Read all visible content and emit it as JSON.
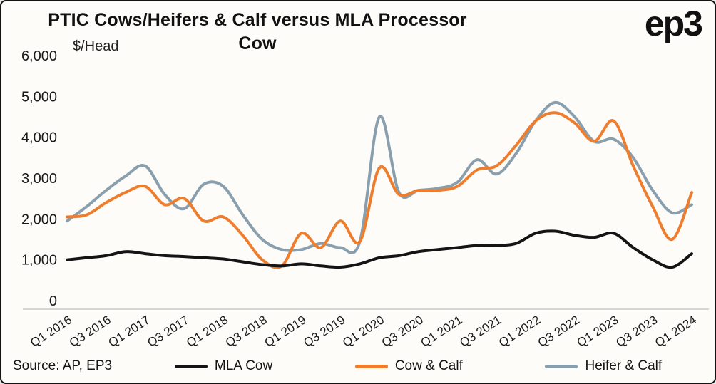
{
  "header": {
    "title_line1": "PTIC Cows/Heifers & Calf versus MLA Processor",
    "title_line2": "Cow",
    "logo_text": "ep3"
  },
  "footer": {
    "source": "Source: AP, EP3"
  },
  "chart_data": {
    "type": "line",
    "title": "PTIC Cows/Heifers & Calf versus MLA Processor Cow",
    "xlabel": "",
    "ylabel": "$/Head",
    "ylim": [
      0,
      6000
    ],
    "ytick_step": 1000,
    "x_label_every": 2,
    "grid": false,
    "legend_position": "bottom",
    "categories": [
      "Q1 2016",
      "Q2 2016",
      "Q3 2016",
      "Q4 2016",
      "Q1 2017",
      "Q2 2017",
      "Q3 2017",
      "Q4 2017",
      "Q1 2018",
      "Q2 2018",
      "Q3 2018",
      "Q4 2018",
      "Q1 2019",
      "Q2 2019",
      "Q3 2019",
      "Q4 2019",
      "Q1 2020",
      "Q2 2020",
      "Q3 2020",
      "Q4 2020",
      "Q1 2021",
      "Q2 2021",
      "Q3 2021",
      "Q4 2021",
      "Q1 2022",
      "Q2 2022",
      "Q3 2022",
      "Q4 2022",
      "Q1 2023",
      "Q2 2023",
      "Q3 2023",
      "Q4 2023",
      "Q1 2024"
    ],
    "series": [
      {
        "name": "MLA Cow",
        "color": "#141414",
        "values": [
          1000,
          1050,
          1100,
          1200,
          1150,
          1100,
          1080,
          1050,
          1020,
          950,
          880,
          850,
          900,
          850,
          820,
          900,
          1050,
          1100,
          1200,
          1250,
          1300,
          1350,
          1350,
          1400,
          1650,
          1700,
          1600,
          1550,
          1650,
          1300,
          1000,
          820,
          1150
        ]
      },
      {
        "name": "Cow & Calf",
        "color": "#EF7D2E",
        "values": [
          2050,
          2100,
          2400,
          2650,
          2800,
          2350,
          2500,
          1950,
          2050,
          1600,
          1000,
          850,
          1650,
          1300,
          1950,
          1450,
          3250,
          2600,
          2700,
          2700,
          2800,
          3200,
          3300,
          3800,
          4400,
          4600,
          4350,
          3900,
          4400,
          3300,
          2300,
          1500,
          2650
        ]
      },
      {
        "name": "Heifer & Calf",
        "color": "#8A9FAD",
        "values": [
          1950,
          2300,
          2700,
          3050,
          3300,
          2600,
          2250,
          2850,
          2800,
          2100,
          1500,
          1250,
          1250,
          1400,
          1300,
          1450,
          4500,
          2650,
          2700,
          2750,
          2900,
          3450,
          3100,
          3600,
          4400,
          4850,
          4500,
          3900,
          3950,
          3500,
          2700,
          2150,
          2350
        ]
      }
    ]
  }
}
